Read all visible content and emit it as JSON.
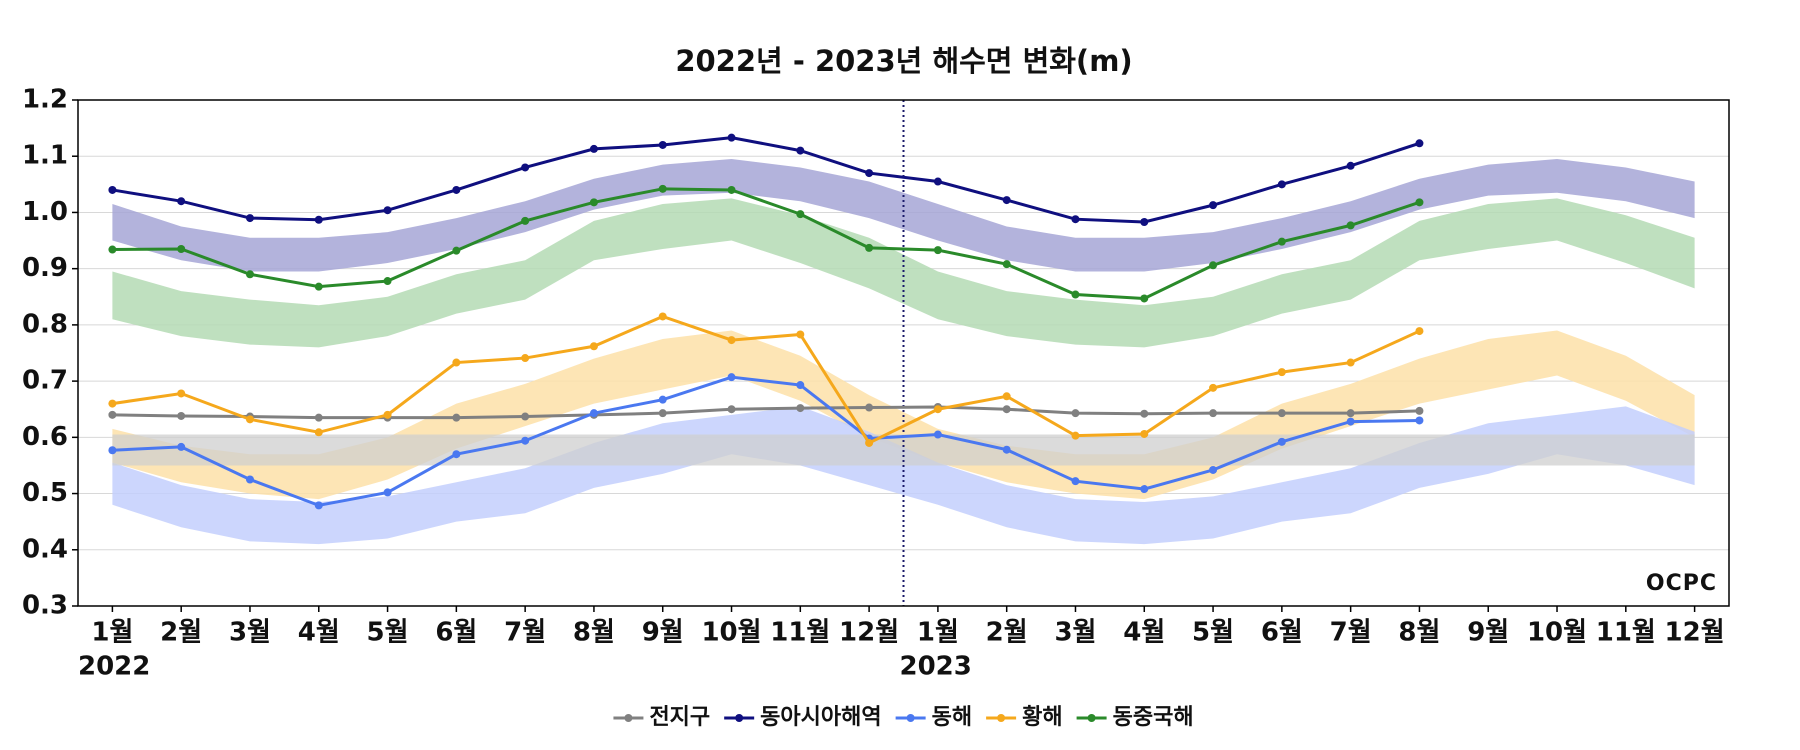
{
  "chart_data": {
    "type": "line",
    "title": "2022년 - 2023년 해수면 변화(m)",
    "categories": [
      "1월",
      "2월",
      "3월",
      "4월",
      "5월",
      "6월",
      "7월",
      "8월",
      "9월",
      "10월",
      "11월",
      "12월",
      "1월",
      "2월",
      "3월",
      "4월",
      "5월",
      "6월",
      "7월",
      "8월",
      "9월",
      "10월",
      "11월",
      "12월"
    ],
    "years": [
      "2022",
      "2023"
    ],
    "logo": "OCPC",
    "ylim": [
      0.3,
      1.2
    ],
    "yticks": [
      0.3,
      0.4,
      0.5,
      0.6,
      0.7,
      0.8,
      0.9,
      {
        "value": 1,
        "label": "1.0"
      },
      1.1,
      1.2
    ],
    "grid": true,
    "legend": "bottom",
    "series": [
      {
        "name": "전지구",
        "color": "#808080",
        "values": [
          0.64,
          0.638,
          0.637,
          0.635,
          0.635,
          0.635,
          0.637,
          0.64,
          0.643,
          0.65,
          0.652,
          0.653,
          0.654,
          0.65,
          0.643,
          0.642,
          0.643,
          0.643,
          0.643,
          0.647,
          null,
          null,
          null,
          null
        ],
        "band": {
          "color": "#cfcfcf",
          "upper": [
            0.605,
            0.605,
            0.605,
            0.605,
            0.605,
            0.605,
            0.605,
            0.605,
            0.605,
            0.605,
            0.605,
            0.605,
            0.605,
            0.605,
            0.605,
            0.605,
            0.605,
            0.605,
            0.605,
            0.605,
            0.605,
            0.605,
            0.605,
            0.605
          ],
          "lower": [
            0.55,
            0.55,
            0.55,
            0.55,
            0.55,
            0.55,
            0.55,
            0.55,
            0.55,
            0.55,
            0.55,
            0.55,
            0.55,
            0.55,
            0.55,
            0.55,
            0.55,
            0.55,
            0.55,
            0.55,
            0.55,
            0.55,
            0.55,
            0.55
          ]
        }
      },
      {
        "name": "동아시아해역",
        "color": "#0f0f7f",
        "values": [
          1.04,
          1.02,
          0.99,
          0.987,
          1.004,
          1.04,
          1.08,
          1.113,
          1.12,
          1.133,
          1.11,
          1.07,
          1.055,
          1.022,
          0.988,
          0.983,
          1.013,
          1.05,
          1.083,
          1.123,
          null,
          null,
          null,
          null
        ],
        "band": {
          "color": "#a6a6d6",
          "upper": [
            1.015,
            0.975,
            0.955,
            0.955,
            0.965,
            0.99,
            1.02,
            1.06,
            1.085,
            1.095,
            1.08,
            1.055,
            1.015,
            0.975,
            0.955,
            0.955,
            0.965,
            0.99,
            1.02,
            1.06,
            1.085,
            1.095,
            1.08,
            1.055
          ],
          "lower": [
            0.95,
            0.915,
            0.895,
            0.895,
            0.91,
            0.935,
            0.965,
            1.005,
            1.03,
            1.035,
            1.02,
            0.99,
            0.95,
            0.915,
            0.895,
            0.895,
            0.91,
            0.935,
            0.965,
            1.005,
            1.03,
            1.035,
            1.02,
            0.99
          ]
        }
      },
      {
        "name": "동해",
        "color": "#4a78f0",
        "values": [
          0.577,
          0.583,
          0.525,
          0.479,
          0.502,
          0.57,
          0.594,
          0.643,
          0.667,
          0.707,
          0.693,
          0.598,
          0.605,
          0.578,
          0.522,
          0.508,
          0.542,
          0.592,
          0.628,
          0.63,
          null,
          null,
          null,
          null
        ],
        "band": {
          "color": "#c3cffd",
          "upper": [
            0.555,
            0.515,
            0.49,
            0.485,
            0.495,
            0.52,
            0.545,
            0.59,
            0.625,
            0.64,
            0.655,
            0.61,
            0.555,
            0.515,
            0.49,
            0.485,
            0.495,
            0.52,
            0.545,
            0.59,
            0.625,
            0.64,
            0.655,
            0.61
          ],
          "lower": [
            0.48,
            0.44,
            0.415,
            0.41,
            0.42,
            0.45,
            0.465,
            0.51,
            0.535,
            0.57,
            0.55,
            0.515,
            0.48,
            0.44,
            0.415,
            0.41,
            0.42,
            0.45,
            0.465,
            0.51,
            0.535,
            0.57,
            0.55,
            0.515
          ]
        }
      },
      {
        "name": "황해",
        "color": "#f5a81c",
        "values": [
          0.66,
          0.678,
          0.632,
          0.609,
          0.64,
          0.733,
          0.741,
          0.762,
          0.815,
          0.773,
          0.783,
          0.59,
          0.65,
          0.673,
          0.603,
          0.606,
          0.688,
          0.716,
          0.733,
          0.789,
          null,
          null,
          null,
          null
        ],
        "band": {
          "color": "#fde0a8",
          "upper": [
            0.615,
            0.585,
            0.57,
            0.57,
            0.6,
            0.66,
            0.695,
            0.74,
            0.775,
            0.79,
            0.745,
            0.675,
            0.615,
            0.585,
            0.57,
            0.57,
            0.6,
            0.66,
            0.695,
            0.74,
            0.775,
            0.79,
            0.745,
            0.675
          ],
          "lower": [
            0.555,
            0.52,
            0.5,
            0.49,
            0.525,
            0.58,
            0.62,
            0.66,
            0.685,
            0.71,
            0.665,
            0.6,
            0.555,
            0.52,
            0.5,
            0.49,
            0.525,
            0.58,
            0.62,
            0.66,
            0.685,
            0.71,
            0.665,
            0.6
          ]
        }
      },
      {
        "name": "동중국해",
        "color": "#2a8a2a",
        "values": [
          0.934,
          0.935,
          0.89,
          0.868,
          0.878,
          0.932,
          0.985,
          1.018,
          1.042,
          1.04,
          0.997,
          0.937,
          0.933,
          0.908,
          0.854,
          0.847,
          0.906,
          0.948,
          0.977,
          1.018,
          null,
          null,
          null,
          null
        ],
        "band": {
          "color": "#b4dbb4",
          "upper": [
            0.895,
            0.86,
            0.845,
            0.835,
            0.85,
            0.89,
            0.915,
            0.985,
            1.015,
            1.025,
            0.995,
            0.955,
            0.895,
            0.86,
            0.845,
            0.835,
            0.85,
            0.89,
            0.915,
            0.985,
            1.015,
            1.025,
            0.995,
            0.955
          ],
          "lower": [
            0.81,
            0.78,
            0.765,
            0.76,
            0.78,
            0.82,
            0.845,
            0.915,
            0.935,
            0.95,
            0.91,
            0.865,
            0.81,
            0.78,
            0.765,
            0.76,
            0.78,
            0.82,
            0.845,
            0.915,
            0.935,
            0.95,
            0.91,
            0.865
          ]
        }
      }
    ]
  }
}
